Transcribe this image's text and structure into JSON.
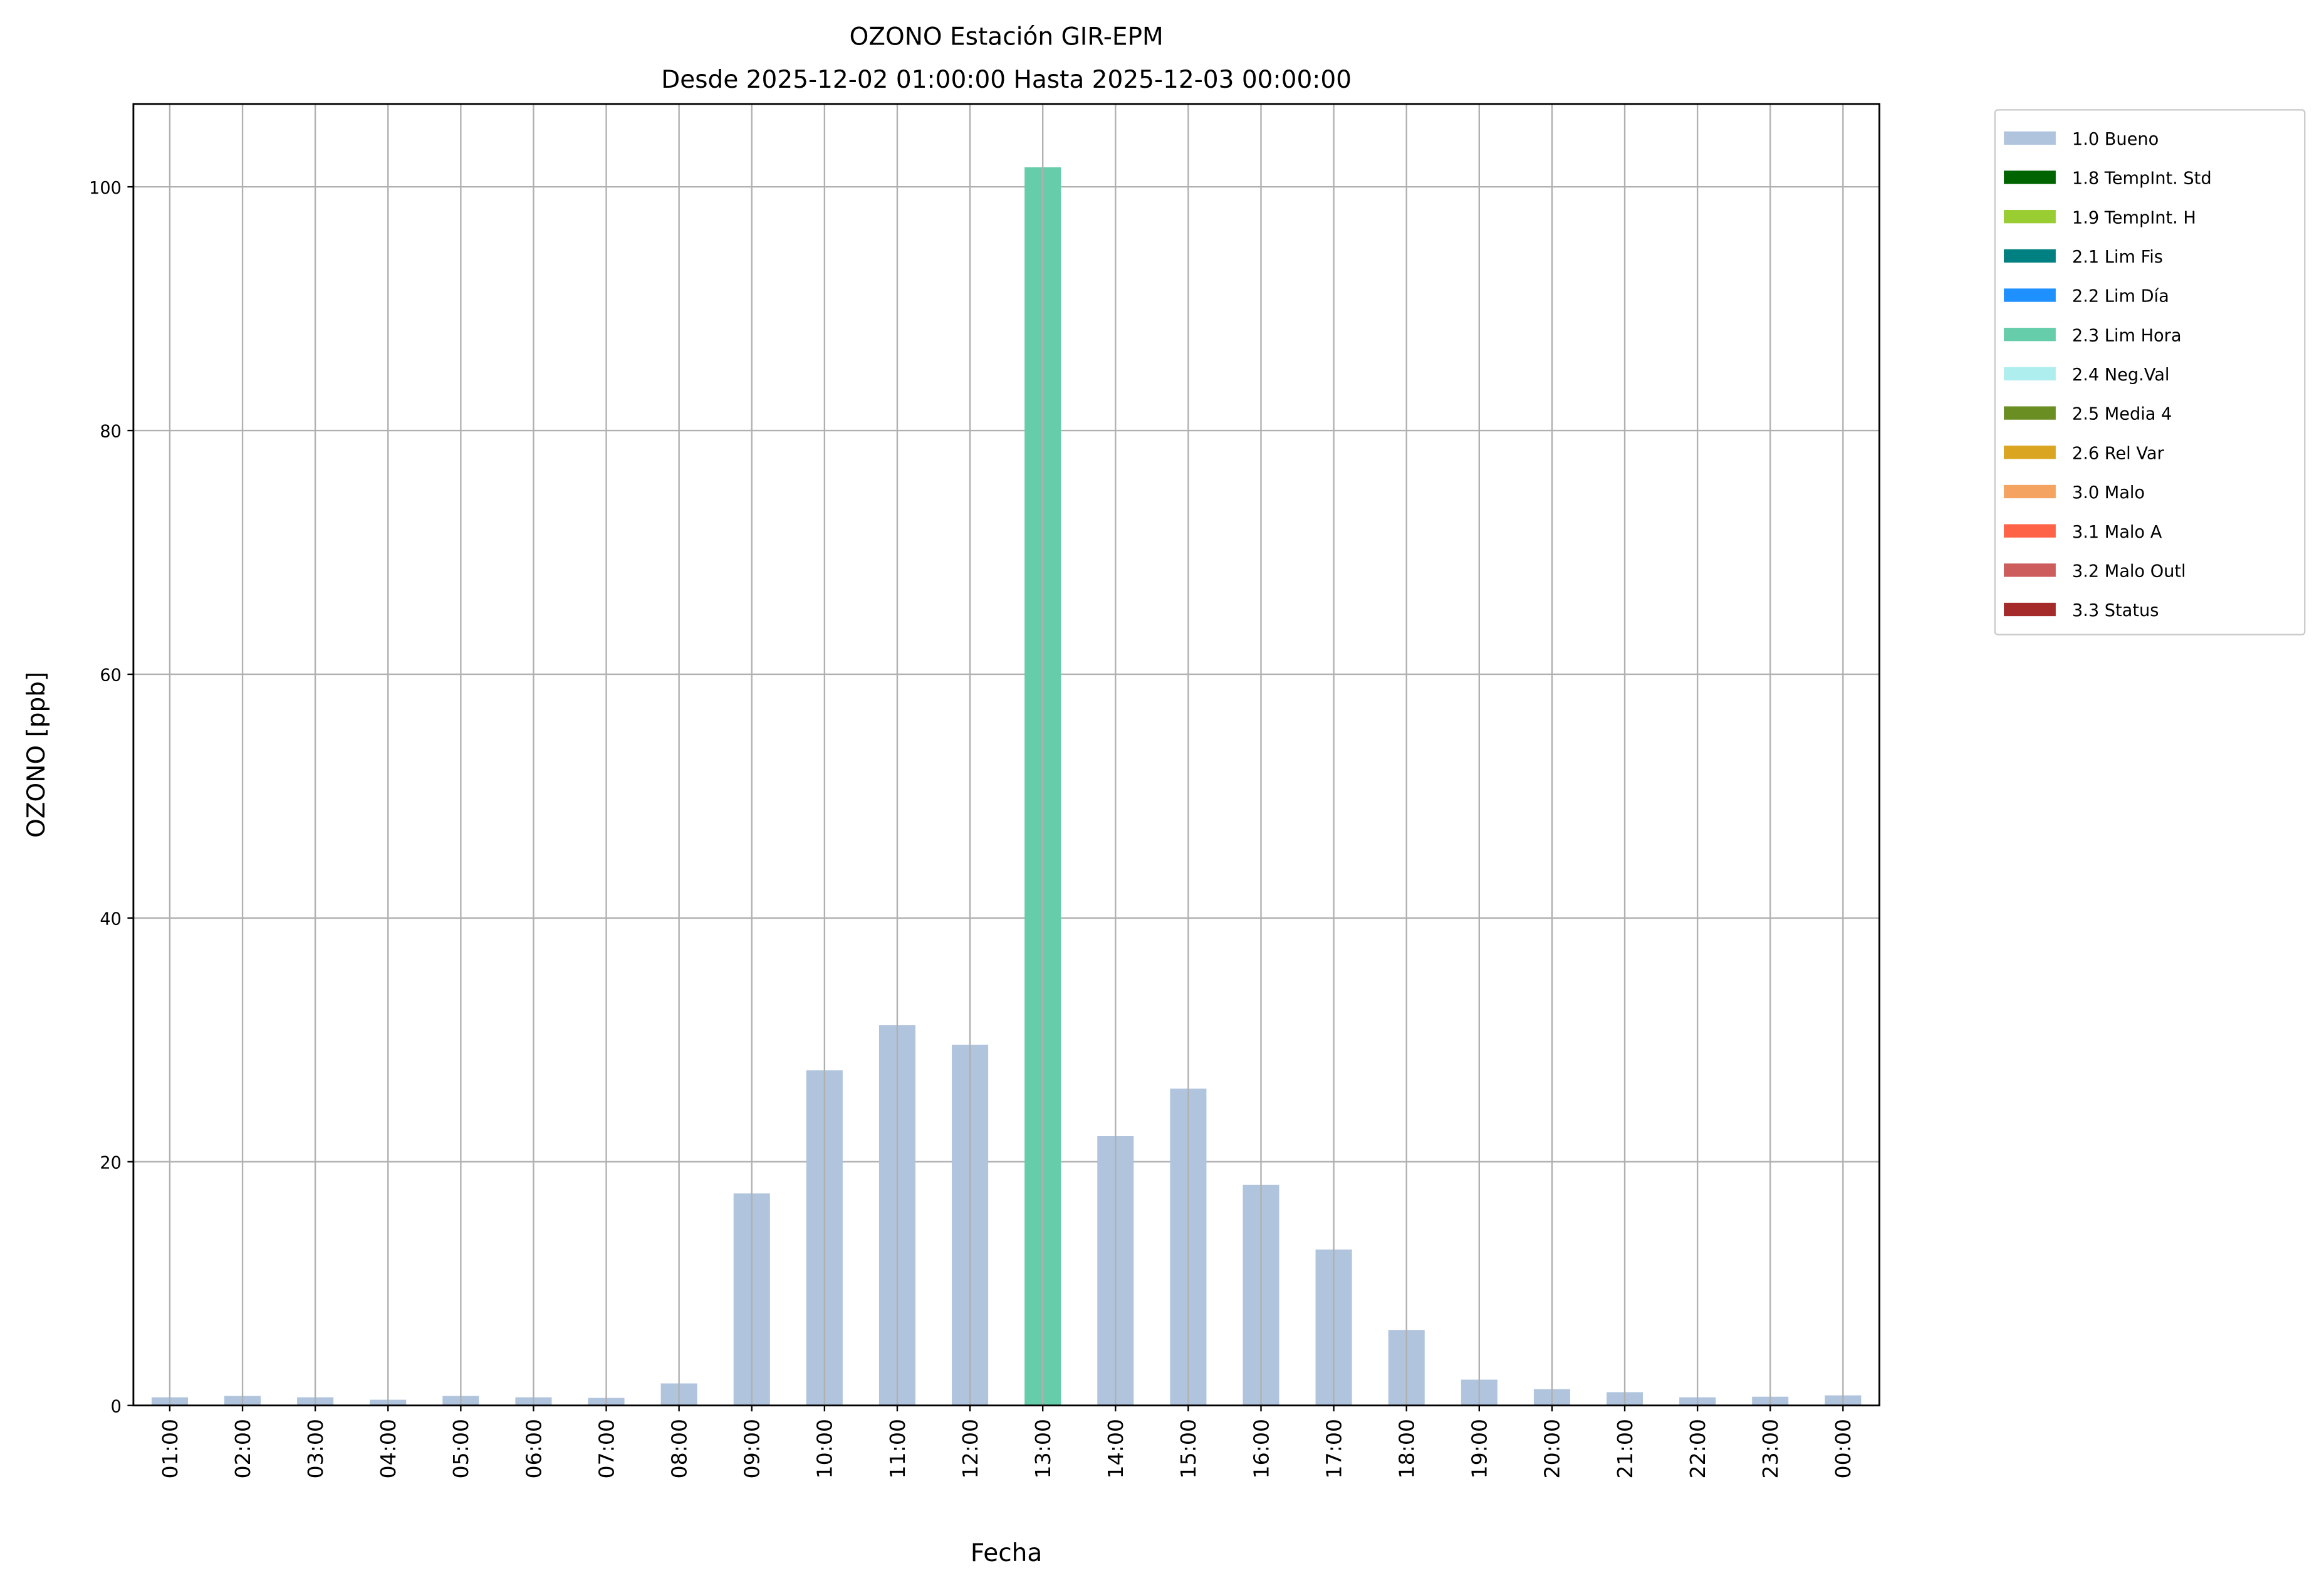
{
  "chart_data": {
    "type": "bar",
    "title": "OZONO Estación GIR-EPM",
    "subtitle": "Desde 2025-12-02 01:00:00 Hasta 2025-12-03 00:00:00",
    "xlabel": "Fecha",
    "ylabel": "OZONO [ppb]",
    "ylim": [
      0,
      106.8
    ],
    "yticks": [
      0,
      20,
      40,
      60,
      80,
      100
    ],
    "grid": true,
    "legend_placement": "outside-top-right",
    "categories": [
      "01:00",
      "02:00",
      "03:00",
      "04:00",
      "05:00",
      "06:00",
      "07:00",
      "08:00",
      "09:00",
      "10:00",
      "11:00",
      "12:00",
      "13:00",
      "14:00",
      "15:00",
      "16:00",
      "17:00",
      "18:00",
      "19:00",
      "20:00",
      "21:00",
      "22:00",
      "23:00",
      "00:00"
    ],
    "values": [
      0.67,
      0.78,
      0.67,
      0.47,
      0.78,
      0.67,
      0.62,
      1.81,
      17.4,
      27.5,
      31.2,
      29.6,
      101.6,
      22.1,
      26.0,
      18.1,
      12.8,
      6.2,
      2.12,
      1.34,
      1.09,
      0.67,
      0.72,
      0.83
    ],
    "flags": [
      "1.0 Bueno",
      "1.0 Bueno",
      "1.0 Bueno",
      "1.0 Bueno",
      "1.0 Bueno",
      "1.0 Bueno",
      "1.0 Bueno",
      "1.0 Bueno",
      "1.0 Bueno",
      "1.0 Bueno",
      "1.0 Bueno",
      "1.0 Bueno",
      "2.3 Lim Hora",
      "1.0 Bueno",
      "1.0 Bueno",
      "1.0 Bueno",
      "1.0 Bueno",
      "1.0 Bueno",
      "1.0 Bueno",
      "1.0 Bueno",
      "1.0 Bueno",
      "1.0 Bueno",
      "1.0 Bueno",
      "1.0 Bueno"
    ],
    "legend": [
      {
        "name": "1.0 Bueno",
        "color": "#b0c4de"
      },
      {
        "name": "1.8 TempInt. Std",
        "color": "#006400"
      },
      {
        "name": "1.9 TempInt. H",
        "color": "#9acd32"
      },
      {
        "name": "2.1 Lim Fis",
        "color": "#008080"
      },
      {
        "name": "2.2 Lim Día",
        "color": "#1e90ff"
      },
      {
        "name": "2.3 Lim Hora",
        "color": "#66cdaa"
      },
      {
        "name": "2.4 Neg.Val",
        "color": "#afeeee"
      },
      {
        "name": "2.5 Media 4",
        "color": "#6b8e23"
      },
      {
        "name": "2.6 Rel Var",
        "color": "#daa520"
      },
      {
        "name": "3.0 Malo",
        "color": "#f4a460"
      },
      {
        "name": "3.1 Malo A",
        "color": "#ff6347"
      },
      {
        "name": "3.2 Malo Outl",
        "color": "#cd5c5c"
      },
      {
        "name": "3.3 Status",
        "color": "#a52a2a"
      }
    ]
  }
}
